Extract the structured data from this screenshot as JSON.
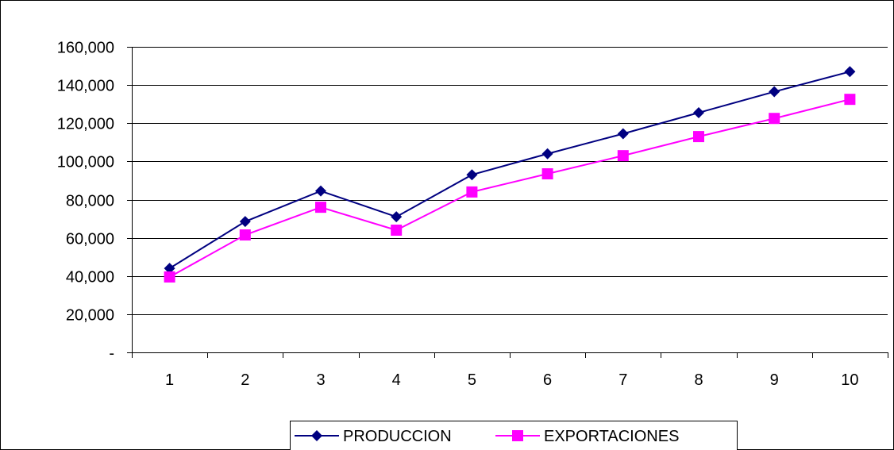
{
  "chart_data": {
    "type": "line",
    "title": "",
    "xlabel": "",
    "ylabel": "",
    "categories": [
      "1",
      "2",
      "3",
      "4",
      "5",
      "6",
      "7",
      "8",
      "9",
      "10"
    ],
    "ylim": [
      0,
      160000
    ],
    "y_ticks": [
      0,
      20000,
      40000,
      60000,
      80000,
      100000,
      120000,
      140000,
      160000
    ],
    "y_tick_labels": [
      "-",
      "20,000",
      "40,000",
      "60,000",
      "80,000",
      "100,000",
      "120,000",
      "140,000",
      "160,000"
    ],
    "grid": "horizontal",
    "legend_position": "bottom",
    "series": [
      {
        "name": "PRODUCCION",
        "color": "#000080",
        "marker": "diamond",
        "values": [
          44000,
          68500,
          84500,
          71000,
          93000,
          104000,
          114500,
          125500,
          136500,
          147000
        ]
      },
      {
        "name": "EXPORTACIONES",
        "color": "#ff00ff",
        "marker": "square",
        "values": [
          39500,
          61500,
          76000,
          64000,
          84000,
          93500,
          103000,
          113000,
          122500,
          132500
        ]
      }
    ]
  }
}
